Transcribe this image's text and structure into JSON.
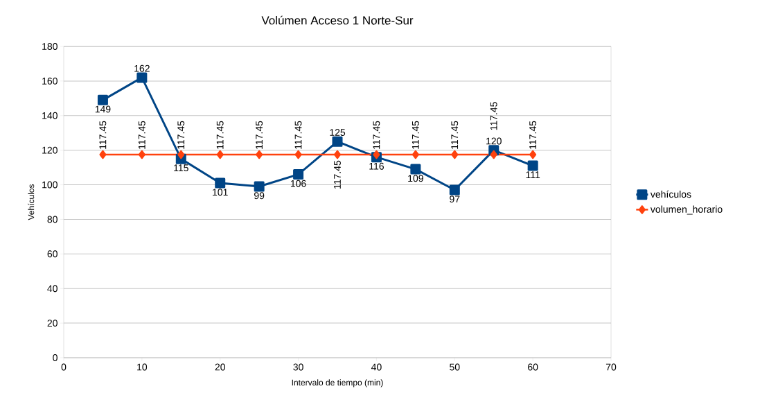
{
  "chart_data": {
    "type": "line",
    "title": "Volúmen Acceso 1 Norte-Sur",
    "xlabel": "Intervalo de tiempo (min)",
    "ylabel": "Vehículos",
    "x": [
      5,
      10,
      15,
      20,
      25,
      30,
      35,
      40,
      45,
      50,
      55,
      60
    ],
    "series": [
      {
        "name": "vehículos",
        "color": "#004586",
        "marker": "square",
        "values": [
          149,
          162,
          115,
          101,
          99,
          106,
          125,
          116,
          109,
          97,
          120,
          111
        ]
      },
      {
        "name": "volumen_horario",
        "color": "#ff420e",
        "marker": "diamond",
        "values": [
          117.45,
          117.45,
          117.45,
          117.45,
          117.45,
          117.45,
          117.45,
          117.45,
          117.45,
          117.45,
          117.45,
          117.45
        ]
      }
    ],
    "xlim": [
      0,
      70
    ],
    "xticks": [
      0,
      10,
      20,
      30,
      40,
      50,
      60,
      70
    ],
    "ylim": [
      0,
      180
    ],
    "yticks": [
      0,
      20,
      40,
      60,
      80,
      100,
      120,
      140,
      160,
      180
    ],
    "grid": "y",
    "legend": "right",
    "data_labels": true
  }
}
